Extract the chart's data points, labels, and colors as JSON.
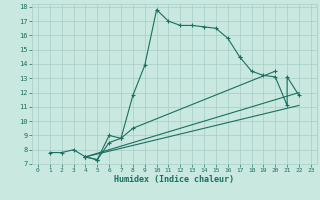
{
  "xlabel": "Humidex (Indice chaleur)",
  "xlim": [
    -0.5,
    23.5
  ],
  "ylim": [
    7,
    18.2
  ],
  "xticks": [
    0,
    1,
    2,
    3,
    4,
    5,
    6,
    7,
    8,
    9,
    10,
    11,
    12,
    13,
    14,
    15,
    16,
    17,
    18,
    19,
    20,
    21,
    22,
    23
  ],
  "yticks": [
    7,
    8,
    9,
    10,
    11,
    12,
    13,
    14,
    15,
    16,
    17,
    18
  ],
  "bg_color": "#c8e8e0",
  "grid_color": "#a8ccc8",
  "line_color": "#1a7060",
  "line1_x": [
    1,
    2,
    3,
    4,
    4,
    5,
    5,
    6,
    7,
    8,
    9,
    10,
    11,
    12,
    13,
    14,
    15,
    16,
    17,
    17,
    18,
    19,
    20,
    21,
    21,
    22
  ],
  "line1_y": [
    7.8,
    7.8,
    8.0,
    7.5,
    7.5,
    7.3,
    7.3,
    9.0,
    8.8,
    11.8,
    13.9,
    17.8,
    17.0,
    16.7,
    16.7,
    16.6,
    16.5,
    15.8,
    14.5,
    14.5,
    13.5,
    13.2,
    13.1,
    11.1,
    13.1,
    11.8
  ],
  "line2_x": [
    4,
    5,
    6,
    7,
    8,
    20
  ],
  "line2_y": [
    7.5,
    7.3,
    8.5,
    8.8,
    9.5,
    13.5
  ],
  "line3_x": [
    4,
    22
  ],
  "line3_y": [
    7.5,
    11.1
  ],
  "line4_x": [
    4,
    22
  ],
  "line4_y": [
    7.5,
    12.0
  ]
}
